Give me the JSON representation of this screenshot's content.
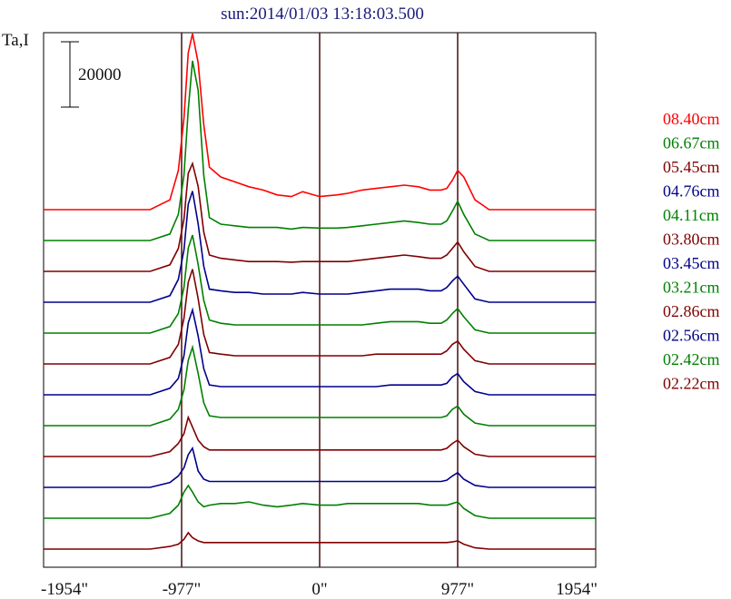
{
  "chart_data": {
    "type": "line",
    "title": "sun:2014/01/03 13:18:03.500",
    "ylabel": "Ta,I",
    "scale_bar_label": "20000",
    "scale_bar_value": 20000,
    "xlim": [
      -1954,
      1954
    ],
    "x_ticks": [
      {
        "value": -1954,
        "label": "-1954\""
      },
      {
        "value": -977,
        "label": "-977\""
      },
      {
        "value": 0,
        "label": "0\""
      },
      {
        "value": 977,
        "label": "977\""
      },
      {
        "value": 1954,
        "label": "1954\""
      }
    ],
    "vertical_lines": [
      -977,
      0,
      977
    ],
    "x": [
      -1954,
      -1200,
      -1060,
      -1000,
      -960,
      -930,
      -900,
      -860,
      -820,
      -780,
      -700,
      -600,
      -500,
      -400,
      -300,
      -200,
      -120,
      0,
      120,
      200,
      300,
      400,
      500,
      600,
      700,
      780,
      860,
      900,
      940,
      977,
      1020,
      1100,
      1200,
      1500,
      1954
    ],
    "series": [
      {
        "name": "08.40cm",
        "color": "#ff0000",
        "values": [
          0,
          0,
          3000,
          12000,
          28000,
          48000,
          56000,
          45000,
          26000,
          13000,
          10000,
          8500,
          7000,
          6000,
          4500,
          4000,
          5500,
          4000,
          4500,
          5000,
          6000,
          6500,
          7000,
          7500,
          7000,
          6000,
          6000,
          6500,
          9000,
          12000,
          10000,
          3000,
          0,
          0,
          0
        ]
      },
      {
        "name": "06.67cm",
        "color": "#008000",
        "values": [
          0,
          0,
          2000,
          8000,
          20000,
          40000,
          55000,
          46000,
          20000,
          7000,
          5000,
          4500,
          4000,
          4000,
          4000,
          3500,
          4000,
          3800,
          3800,
          4000,
          4500,
          5000,
          5500,
          6000,
          5500,
          5000,
          5000,
          6000,
          9000,
          12000,
          8000,
          2000,
          0,
          0,
          0
        ]
      },
      {
        "name": "05.45cm",
        "color": "#800000",
        "values": [
          0,
          0,
          2000,
          7000,
          16000,
          30000,
          33000,
          26000,
          12000,
          5000,
          4000,
          3500,
          3000,
          3000,
          3000,
          2800,
          3000,
          3000,
          3000,
          3000,
          3500,
          4000,
          4500,
          5000,
          4500,
          4000,
          4000,
          5000,
          7000,
          9000,
          6000,
          1500,
          0,
          0,
          0
        ]
      },
      {
        "name": "04.76cm",
        "color": "#00008b",
        "values": [
          0,
          0,
          2000,
          7000,
          16000,
          30000,
          34000,
          24000,
          11000,
          4000,
          3500,
          3000,
          3000,
          2500,
          2500,
          2500,
          3000,
          2500,
          2500,
          2500,
          3000,
          3500,
          4000,
          4000,
          4000,
          3500,
          3500,
          4500,
          6500,
          8000,
          5500,
          1000,
          0,
          0,
          0
        ]
      },
      {
        "name": "04.11cm",
        "color": "#008000",
        "values": [
          0,
          0,
          2000,
          6000,
          14000,
          26000,
          30000,
          21000,
          10000,
          4000,
          3000,
          2500,
          2500,
          2500,
          2500,
          2500,
          2500,
          2500,
          2500,
          2500,
          2500,
          3000,
          3500,
          3500,
          3500,
          3000,
          3000,
          4000,
          6000,
          7500,
          5000,
          1000,
          0,
          0,
          0
        ]
      },
      {
        "name": "03.80cm",
        "color": "#800000",
        "values": [
          0,
          0,
          2000,
          6000,
          14000,
          25000,
          29000,
          20000,
          9000,
          3500,
          3000,
          2500,
          2500,
          2500,
          2500,
          2500,
          2500,
          2500,
          2500,
          2500,
          2500,
          3000,
          3000,
          3000,
          3000,
          3000,
          3000,
          4000,
          6000,
          7000,
          4500,
          1000,
          0,
          0,
          0
        ]
      },
      {
        "name": "03.45cm",
        "color": "#00008b",
        "values": [
          0,
          0,
          2000,
          5000,
          12000,
          22000,
          26000,
          18000,
          8000,
          3000,
          2500,
          2500,
          2500,
          2500,
          2500,
          2500,
          2500,
          2500,
          2500,
          2500,
          2500,
          2500,
          3000,
          3000,
          3000,
          3000,
          3000,
          3500,
          5500,
          6500,
          4000,
          1000,
          0,
          0,
          0
        ]
      },
      {
        "name": "03.21cm",
        "color": "#008000",
        "values": [
          0,
          0,
          2000,
          5000,
          11000,
          20000,
          24000,
          16000,
          7000,
          3000,
          2500,
          2500,
          2500,
          2500,
          2500,
          2500,
          2500,
          2500,
          2500,
          2500,
          2500,
          2500,
          2500,
          2500,
          2500,
          2500,
          2500,
          3000,
          5000,
          6000,
          3500,
          800,
          0,
          0,
          0
        ]
      },
      {
        "name": "02.86cm",
        "color": "#800000",
        "values": [
          0,
          0,
          1500,
          4000,
          7000,
          12000,
          9000,
          5000,
          3000,
          2000,
          2000,
          2000,
          2000,
          2000,
          2000,
          2000,
          2000,
          2000,
          2000,
          2000,
          2000,
          2000,
          2000,
          2000,
          2000,
          2000,
          2000,
          2500,
          4000,
          5000,
          3000,
          700,
          0,
          0,
          0
        ]
      },
      {
        "name": "02.56cm",
        "color": "#00008b",
        "values": [
          0,
          0,
          1500,
          3500,
          6000,
          10000,
          12000,
          5000,
          2500,
          1800,
          1800,
          1800,
          1800,
          1800,
          1800,
          1800,
          1800,
          1800,
          1800,
          1800,
          1800,
          1800,
          1800,
          1800,
          1800,
          1800,
          1800,
          2200,
          3500,
          4500,
          2500,
          600,
          0,
          0,
          0
        ]
      },
      {
        "name": "02.42cm",
        "color": "#008000",
        "values": [
          0,
          0,
          1500,
          4000,
          8000,
          10000,
          8000,
          5000,
          3500,
          4000,
          4500,
          4500,
          5000,
          4000,
          3500,
          4000,
          4500,
          4000,
          4000,
          4500,
          4500,
          4500,
          4500,
          4500,
          4500,
          4000,
          4000,
          4000,
          4500,
          5000,
          3000,
          800,
          0,
          0,
          0
        ]
      },
      {
        "name": "02.22cm",
        "color": "#800000",
        "values": [
          0,
          0,
          800,
          1500,
          3000,
          5000,
          3500,
          2500,
          2000,
          2000,
          2000,
          2000,
          2000,
          2000,
          2000,
          2000,
          2000,
          2000,
          2000,
          2000,
          2000,
          2000,
          2000,
          2000,
          2000,
          2000,
          2000,
          2000,
          2200,
          2500,
          1500,
          400,
          0,
          0,
          0
        ]
      }
    ]
  }
}
